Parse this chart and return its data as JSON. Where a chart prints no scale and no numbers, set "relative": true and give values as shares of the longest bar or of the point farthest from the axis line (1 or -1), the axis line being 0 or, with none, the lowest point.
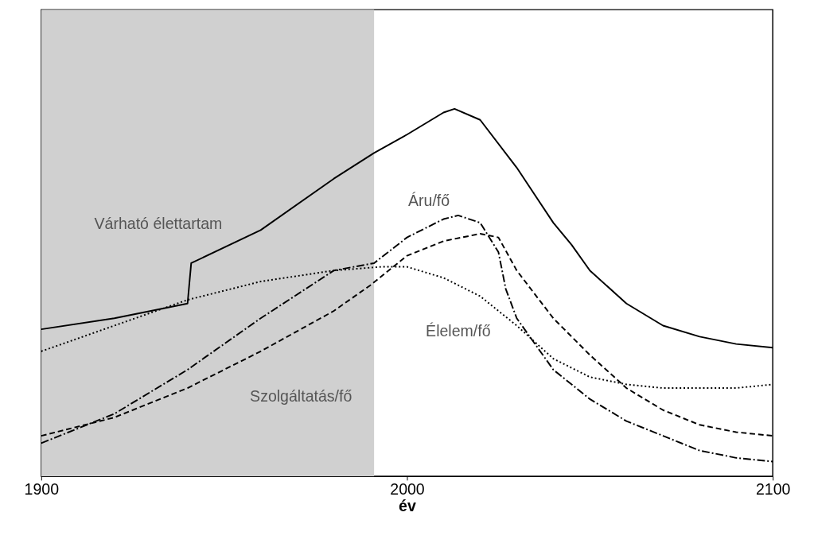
{
  "chart_data": {
    "type": "line",
    "relative": true,
    "xlabel": "év",
    "xlim": [
      1900,
      2100
    ],
    "xticks": [
      1900,
      2000,
      2100
    ],
    "tick_labels": "x",
    "grid": false,
    "legend": false,
    "bands": [
      {
        "axis": "x",
        "from": 1900,
        "to": 1991,
        "color": "#d0d0d0"
      }
    ],
    "series": [
      {
        "name": "Várható élettartam",
        "color": "#000000",
        "line_style": "solid",
        "x": [
          1900,
          1920,
          1940,
          1941,
          1960,
          1980,
          1991,
          2000,
          2010,
          2013,
          2020,
          2030,
          2040,
          2045,
          2050,
          2060,
          2070,
          2080,
          2090,
          2100
        ],
        "values": [
          0.4,
          0.43,
          0.47,
          0.58,
          0.67,
          0.81,
          0.88,
          0.93,
          0.99,
          1.0,
          0.97,
          0.84,
          0.69,
          0.63,
          0.56,
          0.47,
          0.41,
          0.38,
          0.36,
          0.35
        ]
      },
      {
        "name": "Áru/fő",
        "color": "#000000",
        "line_style": "dashdot",
        "x": [
          1900,
          1920,
          1940,
          1960,
          1980,
          1991,
          2000,
          2010,
          2014,
          2020,
          2025,
          2027,
          2030,
          2040,
          2050,
          2060,
          2070,
          2080,
          2090,
          2100
        ],
        "values": [
          0.09,
          0.17,
          0.29,
          0.43,
          0.56,
          0.58,
          0.65,
          0.7,
          0.71,
          0.69,
          0.61,
          0.51,
          0.43,
          0.29,
          0.21,
          0.15,
          0.11,
          0.07,
          0.05,
          0.04
        ]
      },
      {
        "name": "Élelem/fő",
        "color": "#000000",
        "line_style": "dotted",
        "x": [
          1900,
          1920,
          1940,
          1960,
          1980,
          1993,
          2000,
          2010,
          2020,
          2030,
          2040,
          2050,
          2060,
          2070,
          2080,
          2090,
          2100
        ],
        "values": [
          0.34,
          0.41,
          0.48,
          0.53,
          0.56,
          0.57,
          0.57,
          0.54,
          0.49,
          0.41,
          0.32,
          0.27,
          0.25,
          0.24,
          0.24,
          0.24,
          0.25
        ]
      },
      {
        "name": "Szolgáltatás/fő",
        "color": "#000000",
        "line_style": "dashed",
        "x": [
          1900,
          1920,
          1940,
          1960,
          1980,
          1990,
          2000,
          2010,
          2020,
          2025,
          2030,
          2040,
          2050,
          2060,
          2070,
          2080,
          2090,
          2100
        ],
        "values": [
          0.11,
          0.16,
          0.24,
          0.34,
          0.45,
          0.52,
          0.6,
          0.64,
          0.66,
          0.65,
          0.56,
          0.43,
          0.33,
          0.24,
          0.18,
          0.14,
          0.12,
          0.11
        ]
      }
    ]
  }
}
